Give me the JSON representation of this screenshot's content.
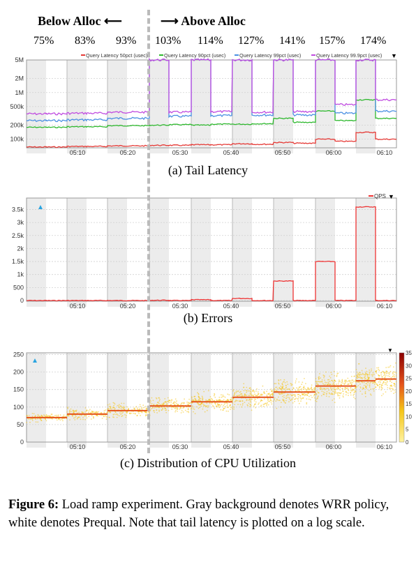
{
  "header": {
    "left_label": "Below Alloc ⟵",
    "right_label": "⟶ Above Alloc",
    "percentages": [
      "75%",
      "83%",
      "93%",
      "103%",
      "114%",
      "127%",
      "141%",
      "157%",
      "174%"
    ]
  },
  "colors": {
    "band_gray": "#ececec",
    "p50": "#e53935",
    "p90": "#2eb82e",
    "p99": "#4a90e2",
    "p999": "#c04ce0",
    "qps": "#ee3333",
    "cpu_dot": "#f5c518",
    "cpu_median": "#e5531b",
    "divider": "#bbbbbb"
  },
  "time_ticks": [
    "05:10",
    "05:20",
    "05:30",
    "05:40",
    "05:50",
    "06:00",
    "06:10"
  ],
  "chart_data": [
    {
      "id": "latency",
      "type": "line",
      "caption": "(a) Tail Latency",
      "yscale": "log",
      "y_ticks": [
        "5M",
        "2M",
        "1M",
        "500k",
        "200k",
        "100k"
      ],
      "y_tick_values": [
        5000000,
        2000000,
        1000000,
        500000,
        200000,
        100000
      ],
      "legend": [
        "Query Latency 50pct (usec)",
        "Query Latency 90pct (usec)",
        "Query Latency 99pct (usec)",
        "Query Latency 99.9pct (usec)"
      ],
      "legend_marker": "▼",
      "steps": [
        "75%",
        "83%",
        "93%",
        "103%",
        "114%",
        "127%",
        "141%",
        "157%",
        "174%"
      ],
      "series": [
        {
          "name": "Query Latency 50pct (usec)",
          "wrr": [
            68000,
            70000,
            72000,
            74000,
            76000,
            80000,
            85000,
            100000,
            140000
          ],
          "prequal": [
            68000,
            70000,
            72000,
            74000,
            76000,
            78000,
            82000,
            90000,
            100000
          ]
        },
        {
          "name": "Query Latency 90pct (usec)",
          "wrr": [
            180000,
            185000,
            195000,
            200000,
            200000,
            210000,
            280000,
            400000,
            700000
          ],
          "prequal": [
            180000,
            185000,
            195000,
            205000,
            210000,
            215000,
            230000,
            250000,
            280000
          ]
        },
        {
          "name": "Query Latency 99pct (usec)",
          "wrr": [
            250000,
            260000,
            280000,
            5000000,
            5000000,
            5000000,
            5000000,
            5000000,
            5000000
          ],
          "prequal": [
            250000,
            260000,
            280000,
            310000,
            320000,
            330000,
            330000,
            360000,
            400000
          ]
        },
        {
          "name": "Query Latency 99.9pct (usec)",
          "wrr": [
            350000,
            360000,
            380000,
            5000000,
            5000000,
            5000000,
            5000000,
            5000000,
            5000000
          ],
          "prequal": [
            350000,
            360000,
            380000,
            380000,
            390000,
            380000,
            390000,
            550000,
            700000
          ]
        }
      ]
    },
    {
      "id": "errors",
      "type": "line",
      "caption": "(b) Errors",
      "y_ticks": [
        "3.5k",
        "3k",
        "2.5k",
        "2k",
        "1.5k",
        "1k",
        "500",
        "0"
      ],
      "y_tick_values": [
        3500,
        3000,
        2500,
        2000,
        1500,
        1000,
        500,
        0
      ],
      "legend": [
        "QPS"
      ],
      "legend_marker": "▼",
      "series": [
        {
          "name": "QPS",
          "wrr": [
            0,
            0,
            0,
            10,
            30,
            80,
            750,
            1500,
            3600
          ],
          "prequal": [
            0,
            0,
            0,
            0,
            0,
            0,
            0,
            0,
            0
          ]
        }
      ]
    },
    {
      "id": "cpu",
      "type": "heatmap",
      "caption": "(c) Distribution of CPU Utilization",
      "y_ticks": [
        "250",
        "200",
        "150",
        "100",
        "50",
        "0"
      ],
      "y_tick_values": [
        250,
        200,
        150,
        100,
        50,
        0
      ],
      "colorbar_ticks": [
        "35",
        "30",
        "25",
        "20",
        "15",
        "10",
        "5",
        "0"
      ],
      "colorbar_values": [
        35,
        30,
        25,
        20,
        15,
        10,
        5,
        0
      ],
      "legend_marker": "▼",
      "median_by_step": [
        {
          "wrr": 70,
          "prequal": 70
        },
        {
          "wrr": 80,
          "prequal": 80
        },
        {
          "wrr": 90,
          "prequal": 90
        },
        {
          "wrr": 103,
          "prequal": 103
        },
        {
          "wrr": 115,
          "prequal": 115
        },
        {
          "wrr": 128,
          "prequal": 128
        },
        {
          "wrr": 143,
          "prequal": 143
        },
        {
          "wrr": 160,
          "prequal": 160
        },
        {
          "wrr": 175,
          "prequal": 180
        }
      ]
    }
  ],
  "figure_caption": {
    "bold": "Figure 6:",
    "text": " Load ramp experiment. Gray background denotes WRR policy, white denotes Prequal. Note that tail latency is plotted on a log scale."
  }
}
